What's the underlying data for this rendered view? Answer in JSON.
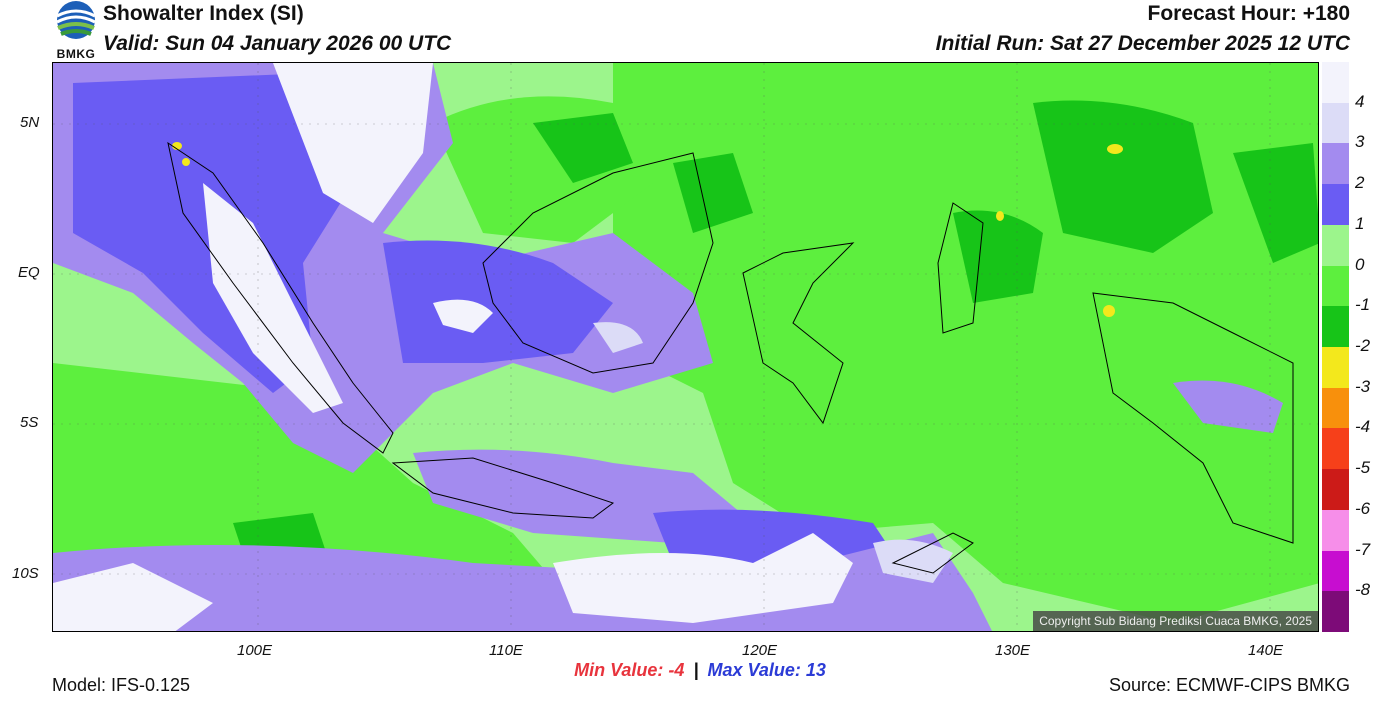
{
  "header": {
    "title": "Showalter Index (SI)",
    "valid": "Valid: Sun 04 January 2026 00 UTC",
    "forecast_hour": "Forecast Hour: +180",
    "initial_run": "Initial Run: Sat 27 December 2025 12 UTC",
    "logo_text": "BMKG"
  },
  "map": {
    "lat_ticks": [
      "5N",
      "EQ",
      "5S",
      "10S"
    ],
    "lon_ticks": [
      "100E",
      "110E",
      "120E",
      "130E",
      "140E"
    ],
    "copyright": "Copyright Sub Bidang Prediksi Cuaca BMKG, 2025"
  },
  "legend": {
    "labels": [
      "4",
      "3",
      "2",
      "1",
      "0",
      "-1",
      "-2",
      "-3",
      "-4",
      "-5",
      "-6",
      "-7",
      "-8"
    ],
    "colors": [
      "#f3f3fc",
      "#dcdcf7",
      "#a38bef",
      "#6a5cf3",
      "#9cf58c",
      "#5def3e",
      "#17c418",
      "#f3e81c",
      "#f8900c",
      "#f6401a",
      "#cc1b18",
      "#f68ee9",
      "#c70dd0",
      "#7d0b78"
    ]
  },
  "stats": {
    "min_label": "Min Value:  -4",
    "separator": "|",
    "max_label": "Max Value:  13",
    "min_color": "#e8343d",
    "max_color": "#2b3bd6"
  },
  "footer": {
    "model": "Model: IFS-0.125",
    "source": "Source: ECMWF-CIPS BMKG"
  }
}
